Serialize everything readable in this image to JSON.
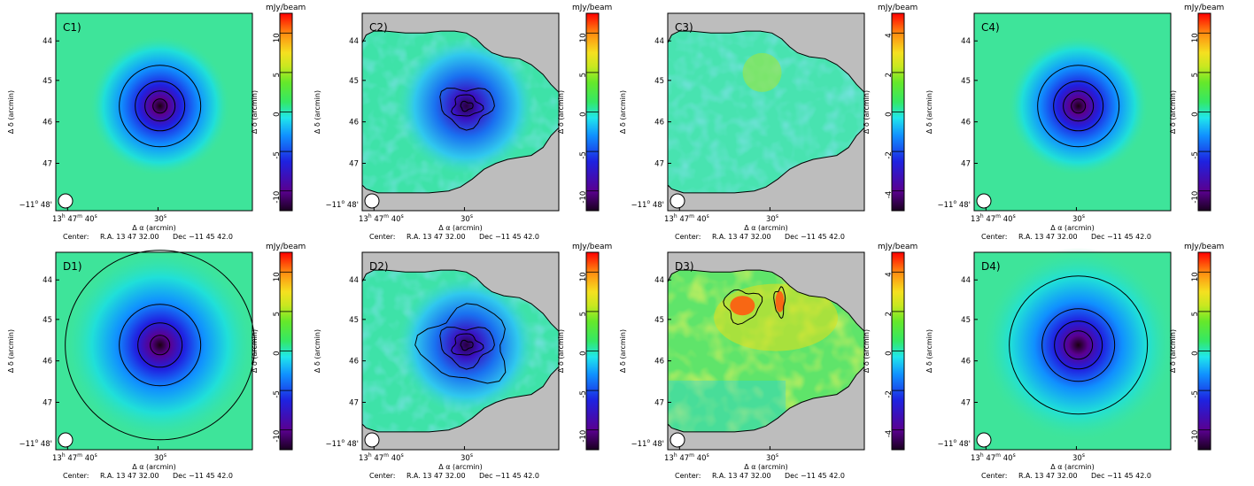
{
  "figure": {
    "colorbar_unit": "mJy/beam",
    "xlabel": "Δ α (arcmin)",
    "ylabel": "Δ δ (arcmin)",
    "center_label": "Center:",
    "center_ra": "R.A. 13 47 32.00",
    "center_dec": "Dec   −11 45 42.0",
    "x_tick_labels": {
      "left": "13",
      "left_h": "h",
      "left_m": "47",
      "left_mm": "m",
      "left_s": "40",
      "left_ss": "s",
      "mid": "30",
      "mid_s": "s"
    },
    "y_tick_labels": [
      "44",
      "45",
      "46",
      "47"
    ],
    "y_bottom_label": {
      "deg": "−11",
      "deg_sup": "o",
      "min": "48'"
    }
  },
  "chart_data": [
    {
      "panel": "C1)",
      "type": "heatmap",
      "kind": "model",
      "cbar_ticks": [
        10,
        5,
        0,
        -5,
        -10
      ],
      "cbar_range": [
        -12.5,
        12.5
      ],
      "peak": -12.5,
      "xlabel": "Δ α (arcmin)",
      "ylabel": "Δ δ (arcmin)"
    },
    {
      "panel": "C2)",
      "type": "heatmap",
      "kind": "observed",
      "cbar_ticks": [
        10,
        5,
        0,
        -5,
        -10
      ],
      "cbar_range": [
        -12.5,
        12.5
      ],
      "peak": -12,
      "xlabel": "Δ α (arcmin)",
      "ylabel": "Δ δ (arcmin)"
    },
    {
      "panel": "C3)",
      "type": "heatmap",
      "kind": "residual",
      "cbar_ticks": [
        4,
        2,
        0,
        -2,
        -4
      ],
      "cbar_range": [
        -5,
        5
      ],
      "xlabel": "Δ α (arcmin)",
      "ylabel": "Δ δ (arcmin)"
    },
    {
      "panel": "C4)",
      "type": "heatmap",
      "kind": "model",
      "cbar_ticks": [
        10,
        5,
        0,
        -5,
        -10
      ],
      "cbar_range": [
        -12.5,
        12.5
      ],
      "peak": -12,
      "xlabel": "Δ α (arcmin)",
      "ylabel": "Δ δ (arcmin)"
    },
    {
      "panel": "D1)",
      "type": "heatmap",
      "kind": "model-wide",
      "cbar_ticks": [
        10,
        5,
        0,
        -5,
        -10
      ],
      "cbar_range": [
        -12.5,
        12.5
      ],
      "peak": -12.5,
      "xlabel": "Δ α (arcmin)",
      "ylabel": "Δ δ (arcmin)"
    },
    {
      "panel": "D2)",
      "type": "heatmap",
      "kind": "observed",
      "cbar_ticks": [
        10,
        5,
        0,
        -5,
        -10
      ],
      "cbar_range": [
        -12.5,
        12.5
      ],
      "peak": -12,
      "xlabel": "Δ α (arcmin)",
      "ylabel": "Δ δ (arcmin)"
    },
    {
      "panel": "D3)",
      "type": "heatmap",
      "kind": "residual-positive",
      "cbar_ticks": [
        4,
        2,
        0,
        -2,
        -4
      ],
      "cbar_range": [
        -5,
        5
      ],
      "xlabel": "Δ α (arcmin)",
      "ylabel": "Δ δ (arcmin)"
    },
    {
      "panel": "D4)",
      "type": "heatmap",
      "kind": "model-wide",
      "cbar_ticks": [
        10,
        5,
        0,
        -5,
        -10
      ],
      "cbar_range": [
        -12.5,
        12.5
      ],
      "peak": -10,
      "xlabel": "Δ α (arcmin)",
      "ylabel": "Δ δ (arcmin)"
    }
  ]
}
